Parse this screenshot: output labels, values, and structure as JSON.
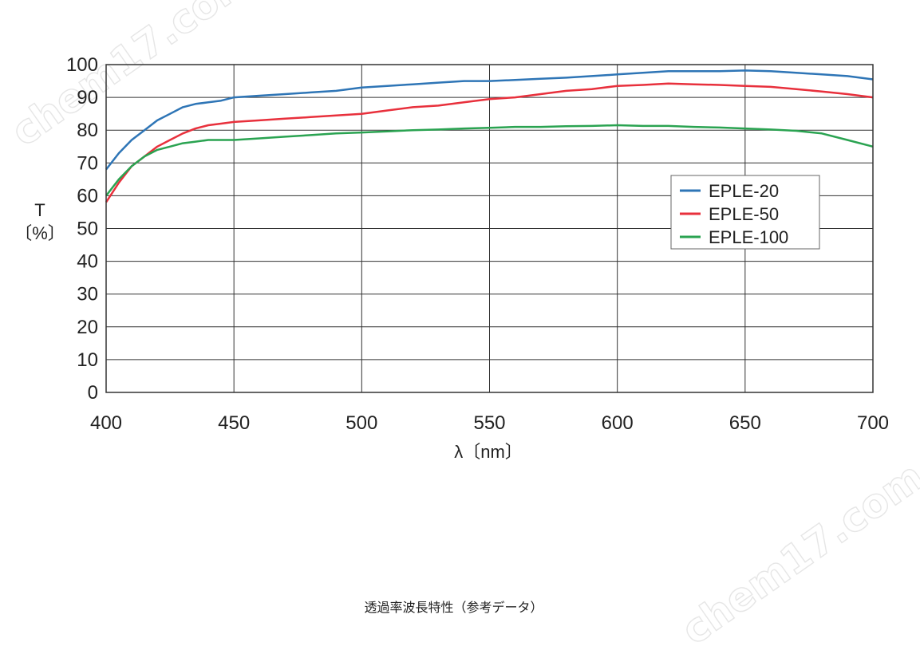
{
  "chart_data": {
    "type": "line",
    "xlabel": "λ〔nm〕",
    "ylabel_line1": "T",
    "ylabel_line2": "〔%〕",
    "xlim": [
      400,
      700
    ],
    "ylim": [
      0,
      100
    ],
    "xticks": [
      400,
      450,
      500,
      550,
      600,
      650,
      700
    ],
    "yticks": [
      0,
      10,
      20,
      30,
      40,
      50,
      60,
      70,
      80,
      90,
      100
    ],
    "grid": true,
    "legend_position": "right",
    "x": [
      400,
      405,
      410,
      415,
      420,
      425,
      430,
      435,
      440,
      445,
      450,
      460,
      470,
      480,
      490,
      500,
      510,
      520,
      530,
      540,
      550,
      560,
      570,
      580,
      590,
      600,
      610,
      620,
      630,
      640,
      650,
      660,
      670,
      680,
      690,
      700
    ],
    "series": [
      {
        "name": "EPLE-20",
        "color": "#2e75b6",
        "values": [
          68,
          73,
          77,
          80,
          83,
          85,
          87,
          88,
          88.5,
          89,
          90,
          90.5,
          91,
          91.5,
          92,
          93,
          93.5,
          94,
          94.5,
          95,
          95,
          95.3,
          95.7,
          96,
          96.5,
          97,
          97.5,
          98,
          98,
          98,
          98.2,
          98,
          97.5,
          97,
          96.5,
          95.5
        ]
      },
      {
        "name": "EPLE-50",
        "color": "#e8303c",
        "values": [
          58,
          64,
          69,
          72,
          75,
          77,
          79,
          80.5,
          81.5,
          82,
          82.5,
          83,
          83.5,
          84,
          84.5,
          85,
          86,
          87,
          87.5,
          88.5,
          89.5,
          90,
          91,
          92,
          92.5,
          93.5,
          93.8,
          94.2,
          94,
          93.8,
          93.5,
          93.2,
          92.5,
          91.8,
          91,
          90
        ]
      },
      {
        "name": "EPLE-100",
        "color": "#2aa351",
        "values": [
          60,
          65,
          69,
          72,
          74,
          75,
          76,
          76.5,
          77,
          77,
          77,
          77.5,
          78,
          78.5,
          79,
          79.3,
          79.6,
          80,
          80.2,
          80.5,
          80.7,
          81,
          81,
          81.2,
          81.3,
          81.5,
          81.3,
          81.3,
          81,
          80.8,
          80.5,
          80.2,
          79.8,
          79,
          77,
          75
        ]
      }
    ]
  },
  "watermarks": [
    "chem17.com",
    "chem17.com"
  ],
  "caption": "透過率波長特性（参考データ）"
}
